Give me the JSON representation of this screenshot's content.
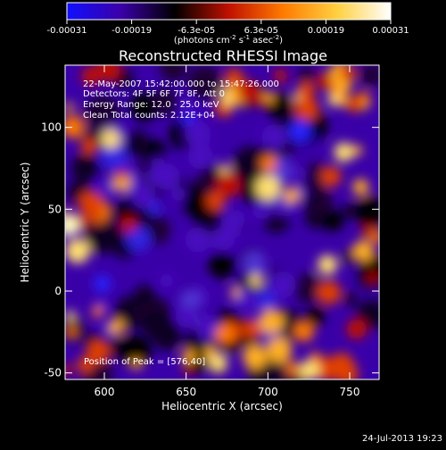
{
  "colorbar": {
    "ticks": [
      "-0.00031",
      "-0.00019",
      "-6.3e-05",
      "6.3e-05",
      "0.00019",
      "0.00031"
    ],
    "unit_main": "(photons cm",
    "unit_sup1": "-2",
    "unit_mid1": " s",
    "unit_sup2": "-1",
    "unit_mid2": " asec",
    "unit_sup3": "-2",
    "unit_end": ")",
    "colors": [
      "#1010ff",
      "#3b00a8",
      "#000000",
      "#c01000",
      "#ff7a00",
      "#ffd040",
      "#ffffff"
    ]
  },
  "info": {
    "time": "22-May-2007 15:42:00.000 to 15:47:26.000",
    "detectors": "Detectors: 4F 5F 6F 7F 8F, Att 0",
    "energy": "Energy Range: 12.0 - 25.0 keV",
    "clean": "Clean     Total counts: 2.12E+04",
    "peak": "Position of Peak = [576,40]"
  },
  "timestamp": "24-Jul-2013 19:23",
  "chart_data": {
    "type": "heatmap",
    "title": "Reconstructed RHESSI Image",
    "xlabel": "Heliocentric X (arcsec)",
    "ylabel": "Heliocentric Y (arcsec)",
    "xlim": [
      576,
      768
    ],
    "ylim": [
      -54,
      138
    ],
    "xticks": [
      600,
      650,
      700,
      750
    ],
    "yticks": [
      -50,
      0,
      50,
      100
    ],
    "xtick_labels": [
      "600",
      "650",
      "700",
      "750"
    ],
    "ytick_labels": [
      "-50",
      "0",
      "50",
      "100"
    ],
    "clim": [
      -0.00031,
      0.00031
    ],
    "peak": [
      576,
      40
    ]
  }
}
